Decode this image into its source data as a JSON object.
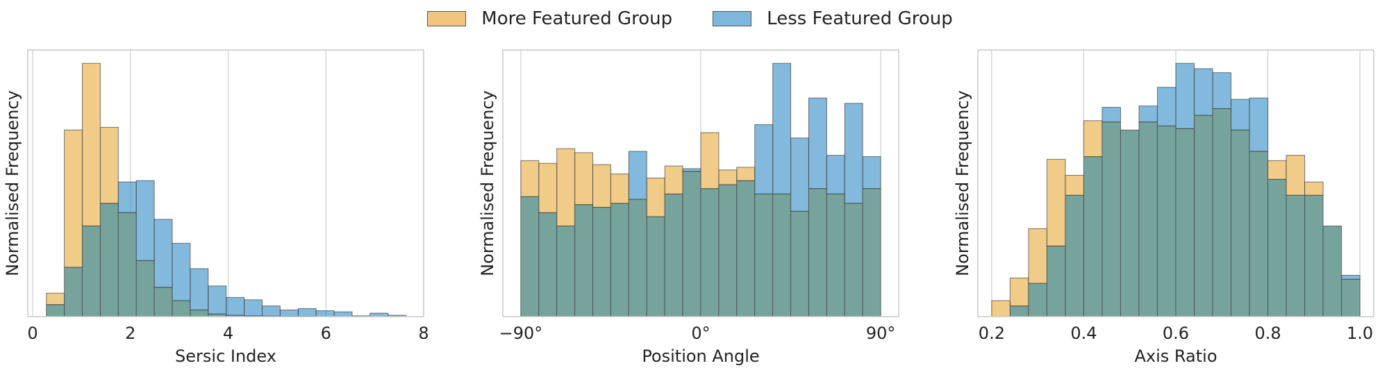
{
  "legend": {
    "more_label": "More Featured Group",
    "less_label": "Less Featured Group"
  },
  "colors": {
    "more": "#e8a838",
    "less": "#2e8ac4",
    "overlap": "#77a39d",
    "edge": "#404040",
    "grid": "#cfcfcf",
    "frame": "#c8c8c8"
  },
  "chart_data": [
    {
      "type": "histogram",
      "xlabel": "Sersic Index",
      "ylabel": "Normalised Frequency",
      "xlim": [
        -0.1,
        8.0
      ],
      "ylim": [
        0,
        1.0
      ],
      "xticks": [
        0,
        2,
        4,
        6,
        8
      ],
      "xtick_labels": [
        "0",
        "2",
        "4",
        "6",
        "8"
      ],
      "grid": true,
      "bin_edges": [
        0.28,
        0.648,
        1.016,
        1.384,
        1.752,
        2.12,
        2.488,
        2.856,
        3.224,
        3.592,
        3.96,
        4.328,
        4.696,
        5.064,
        5.432,
        5.8,
        6.168,
        6.536,
        6.904,
        7.272,
        7.64
      ],
      "series": [
        {
          "name": "More Featured Group",
          "values": [
            0.088,
            0.7,
            0.95,
            0.71,
            0.39,
            0.21,
            0.11,
            0.06,
            0.025,
            0.01,
            0.005,
            0.003,
            0.002,
            0.001,
            0.001,
            0,
            0,
            0,
            0,
            0
          ]
        },
        {
          "name": "Less Featured Group",
          "values": [
            0.045,
            0.185,
            0.34,
            0.425,
            0.505,
            0.51,
            0.365,
            0.275,
            0.18,
            0.115,
            0.072,
            0.063,
            0.04,
            0.025,
            0.03,
            0.022,
            0.018,
            0.003,
            0.013,
            0.005
          ]
        }
      ]
    },
    {
      "type": "histogram",
      "xlabel": "Position Angle",
      "ylabel": "Normalised Frequency",
      "xlim": [
        -99,
        99
      ],
      "ylim": [
        0,
        1.0
      ],
      "xticks": [
        -90,
        0,
        90
      ],
      "xtick_labels": [
        "−90°",
        "0°",
        "90°"
      ],
      "grid": true,
      "bin_edges": [
        -90,
        -81,
        -72,
        -63,
        -54,
        -45,
        -36,
        -27,
        -18,
        -9,
        0,
        9,
        18,
        27,
        36,
        45,
        54,
        63,
        72,
        81,
        90
      ],
      "series": [
        {
          "name": "More Featured Group",
          "values": [
            0.585,
            0.575,
            0.63,
            0.615,
            0.57,
            0.535,
            0.44,
            0.52,
            0.565,
            0.545,
            0.69,
            0.55,
            0.56,
            0.46,
            0.46,
            0.395,
            0.48,
            0.46,
            0.425,
            0.48
          ]
        },
        {
          "name": "Less Featured Group",
          "values": [
            0.45,
            0.39,
            0.34,
            0.42,
            0.41,
            0.425,
            0.62,
            0.375,
            0.46,
            0.555,
            0.48,
            0.495,
            0.51,
            0.72,
            0.95,
            0.67,
            0.82,
            0.605,
            0.8,
            0.6
          ]
        }
      ]
    },
    {
      "type": "histogram",
      "xlabel": "Axis Ratio",
      "ylabel": "Normalised Frequency",
      "xlim": [
        0.17,
        1.03
      ],
      "ylim": [
        0,
        1.0
      ],
      "xticks": [
        0.2,
        0.4,
        0.6,
        0.8,
        1.0
      ],
      "xtick_labels": [
        "0.2",
        "0.4",
        "0.6",
        "0.8",
        "1.0"
      ],
      "grid": true,
      "bin_edges": [
        0.2,
        0.24,
        0.28,
        0.32,
        0.36,
        0.4,
        0.44,
        0.48,
        0.52,
        0.56,
        0.6,
        0.64,
        0.68,
        0.72,
        0.76,
        0.8,
        0.84,
        0.88,
        0.92,
        0.96,
        1.0
      ],
      "series": [
        {
          "name": "More Featured Group",
          "values": [
            0.06,
            0.145,
            0.33,
            0.59,
            0.53,
            0.735,
            0.73,
            0.7,
            0.73,
            0.715,
            0.705,
            0.755,
            0.78,
            0.7,
            0.62,
            0.585,
            0.605,
            0.505,
            0.34,
            0.14
          ]
        },
        {
          "name": "Less Featured Group",
          "values": [
            0,
            0.04,
            0.125,
            0.265,
            0.455,
            0.6,
            0.785,
            0.7,
            0.79,
            0.86,
            0.95,
            0.93,
            0.915,
            0.815,
            0.82,
            0.515,
            0.455,
            0.455,
            0.34,
            0.155
          ]
        }
      ]
    }
  ]
}
